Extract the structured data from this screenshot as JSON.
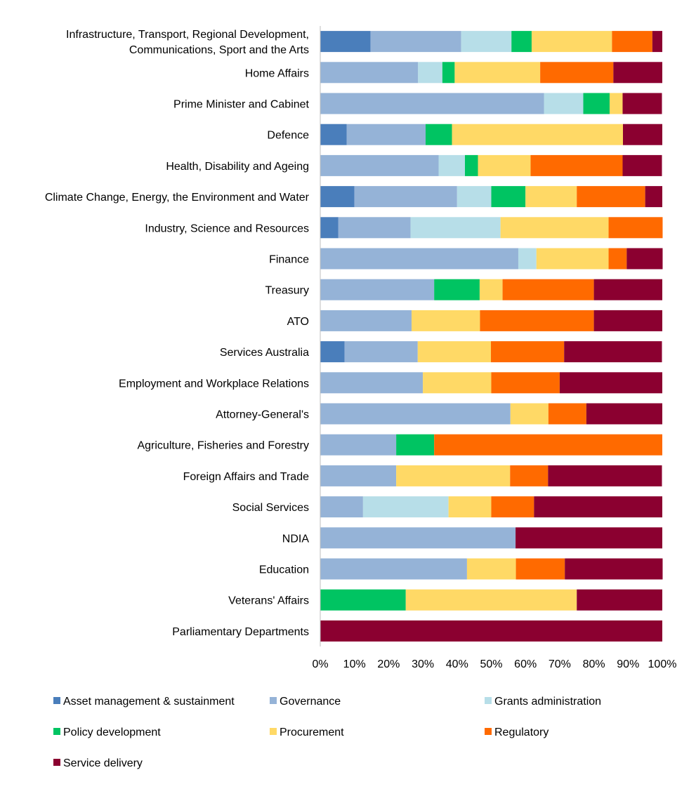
{
  "chart_data": {
    "type": "bar",
    "orientation": "horizontal",
    "stacked": "percent",
    "categories": [
      "Infrastructure, Transport, Regional Development,\nCommunications, Sport and the Arts",
      "Home Affairs",
      "Prime Minister and Cabinet",
      "Defence",
      "Health, Disability and Ageing",
      "Climate Change, Energy, the Environment and Water",
      "Industry, Science and Resources",
      "Finance",
      "Treasury",
      "ATO",
      "Services Australia",
      "Employment and Workplace Relations",
      "Attorney-General's",
      "Agriculture, Fisheries and Forestry",
      "Foreign Affairs and Trade",
      "Social Services",
      "NDIA",
      "Education",
      "Veterans' Affairs",
      "Parliamentary Departments"
    ],
    "series": [
      {
        "name": "Asset management & sustainment",
        "color": "#4a7ebb",
        "values": [
          14.7,
          0,
          0,
          7.7,
          0,
          10,
          5.3,
          0,
          0,
          0,
          7.1,
          0,
          0,
          0,
          0,
          0,
          0,
          0,
          0,
          0
        ]
      },
      {
        "name": "Governance",
        "color": "#95b3d7",
        "values": [
          26.5,
          28.6,
          65.4,
          23.1,
          34.6,
          30,
          21.1,
          57.9,
          33.3,
          26.7,
          21.4,
          30,
          55.6,
          22.2,
          22.2,
          12.5,
          57.1,
          42.9,
          0,
          0
        ]
      },
      {
        "name": "Grants administration",
        "color": "#b7dee8",
        "values": [
          14.7,
          7.1,
          11.5,
          0,
          7.7,
          10,
          26.3,
          5.3,
          0,
          0,
          0,
          0,
          0,
          0,
          0,
          25,
          0,
          0,
          0,
          0
        ]
      },
      {
        "name": "Policy development",
        "color": "#00c462",
        "values": [
          5.9,
          3.6,
          7.7,
          7.7,
          3.8,
          10,
          0,
          0,
          13.3,
          0,
          0,
          0,
          0,
          11.1,
          0,
          0,
          0,
          0,
          25,
          0
        ]
      },
      {
        "name": "Procurement",
        "color": "#ffd966",
        "values": [
          23.5,
          25,
          3.8,
          50,
          15.4,
          15,
          31.6,
          21.1,
          6.7,
          20,
          21.4,
          20,
          11.1,
          0,
          33.3,
          12.5,
          0,
          14.3,
          50,
          0
        ]
      },
      {
        "name": "Regulatory",
        "color": "#ff6a00",
        "values": [
          11.8,
          21.4,
          0,
          0,
          26.9,
          20,
          15.8,
          5.3,
          26.7,
          33.3,
          21.4,
          20,
          11.1,
          66.7,
          11.1,
          12.5,
          0,
          14.3,
          0,
          0
        ]
      },
      {
        "name": "Service delivery",
        "color": "#8b0030",
        "values": [
          2.9,
          14.3,
          11.5,
          11.5,
          11.5,
          5,
          0,
          10.5,
          20,
          20,
          28.6,
          30,
          22.2,
          0,
          33.3,
          37.5,
          42.9,
          28.6,
          25,
          100
        ]
      }
    ],
    "xlim": [
      0,
      100
    ],
    "x_ticks": [
      "0%",
      "10%",
      "20%",
      "30%",
      "40%",
      "50%",
      "60%",
      "70%",
      "80%",
      "90%",
      "100%"
    ],
    "grid": false,
    "legend": "bottom",
    "title": "",
    "xlabel": "",
    "ylabel": ""
  }
}
